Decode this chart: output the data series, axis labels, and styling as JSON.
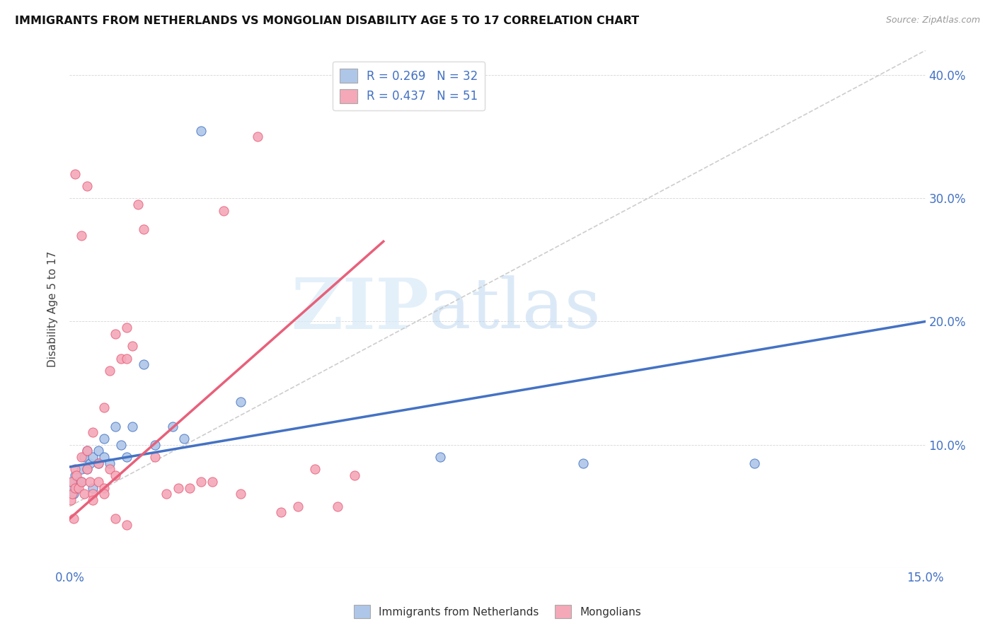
{
  "title": "IMMIGRANTS FROM NETHERLANDS VS MONGOLIAN DISABILITY AGE 5 TO 17 CORRELATION CHART",
  "source": "Source: ZipAtlas.com",
  "ylabel": "Disability Age 5 to 17",
  "xlim": [
    0.0,
    0.15
  ],
  "ylim": [
    0.0,
    0.42
  ],
  "xticks": [
    0.0,
    0.03,
    0.06,
    0.09,
    0.12,
    0.15
  ],
  "xtick_labels": [
    "0.0%",
    "",
    "",
    "",
    "",
    "15.0%"
  ],
  "yticks": [
    0.0,
    0.1,
    0.2,
    0.3,
    0.4
  ],
  "ytick_labels": [
    "",
    "10.0%",
    "20.0%",
    "30.0%",
    "40.0%"
  ],
  "legend_r1": "R = 0.269",
  "legend_n1": "N = 32",
  "legend_r2": "R = 0.437",
  "legend_n2": "N = 51",
  "legend_label1": "Immigrants from Netherlands",
  "legend_label2": "Mongolians",
  "blue_color": "#aec6e8",
  "pink_color": "#f4a8b8",
  "blue_line_color": "#4472c4",
  "pink_line_color": "#e8607a",
  "diagonal_color": "#c8c8c8",
  "watermark_zip": "ZIP",
  "watermark_atlas": "atlas",
  "background_color": "#ffffff",
  "blue_scatter_x": [
    0.0003,
    0.0005,
    0.0007,
    0.001,
    0.0012,
    0.0015,
    0.002,
    0.002,
    0.0025,
    0.003,
    0.003,
    0.0035,
    0.004,
    0.004,
    0.005,
    0.005,
    0.006,
    0.006,
    0.007,
    0.008,
    0.009,
    0.01,
    0.011,
    0.013,
    0.015,
    0.018,
    0.02,
    0.023,
    0.03,
    0.065,
    0.09,
    0.12
  ],
  "blue_scatter_y": [
    0.065,
    0.07,
    0.06,
    0.075,
    0.065,
    0.07,
    0.08,
    0.07,
    0.09,
    0.095,
    0.08,
    0.085,
    0.09,
    0.065,
    0.095,
    0.085,
    0.105,
    0.09,
    0.085,
    0.115,
    0.1,
    0.09,
    0.115,
    0.165,
    0.1,
    0.115,
    0.105,
    0.355,
    0.135,
    0.09,
    0.085,
    0.085
  ],
  "pink_scatter_x": [
    0.0002,
    0.0003,
    0.0005,
    0.0007,
    0.001,
    0.001,
    0.0012,
    0.0015,
    0.002,
    0.002,
    0.0025,
    0.003,
    0.003,
    0.0035,
    0.004,
    0.004,
    0.005,
    0.005,
    0.006,
    0.006,
    0.007,
    0.007,
    0.008,
    0.008,
    0.009,
    0.01,
    0.01,
    0.011,
    0.012,
    0.013,
    0.015,
    0.017,
    0.019,
    0.021,
    0.023,
    0.025,
    0.027,
    0.03,
    0.033,
    0.037,
    0.04,
    0.043,
    0.047,
    0.05,
    0.001,
    0.002,
    0.003,
    0.004,
    0.006,
    0.008,
    0.01
  ],
  "pink_scatter_y": [
    0.055,
    0.07,
    0.06,
    0.04,
    0.065,
    0.08,
    0.075,
    0.065,
    0.07,
    0.09,
    0.06,
    0.08,
    0.095,
    0.07,
    0.06,
    0.11,
    0.07,
    0.085,
    0.065,
    0.13,
    0.08,
    0.16,
    0.075,
    0.19,
    0.17,
    0.195,
    0.17,
    0.18,
    0.295,
    0.275,
    0.09,
    0.06,
    0.065,
    0.065,
    0.07,
    0.07,
    0.29,
    0.06,
    0.35,
    0.045,
    0.05,
    0.08,
    0.05,
    0.075,
    0.32,
    0.27,
    0.31,
    0.055,
    0.06,
    0.04,
    0.035
  ]
}
